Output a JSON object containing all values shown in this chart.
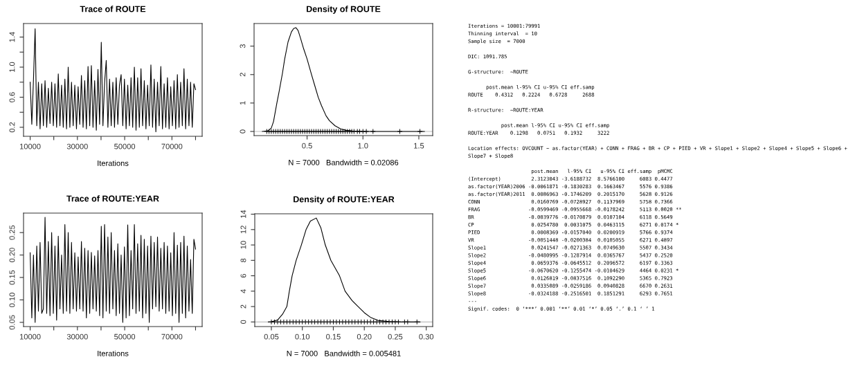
{
  "chart_data": [
    {
      "type": "line",
      "title": "Trace of ROUTE",
      "xlabel": "Iterations",
      "xlim": [
        7201,
        82791
      ],
      "ylim": [
        0.08,
        1.58
      ],
      "xticks": [
        10000,
        {
          "value": 20000,
          "label": null
        },
        30000,
        {
          "value": 40000,
          "label": null
        },
        50000,
        {
          "value": 60000,
          "label": null
        },
        70000,
        {
          "value": 80000,
          "label": null
        }
      ],
      "yticks": [
        0.2,
        {
          "value": 0.4,
          "label": null
        },
        0.6,
        {
          "value": 0.8,
          "label": null
        },
        {
          "value": 1.0,
          "label": "1.0"
        },
        {
          "value": 1.2,
          "label": null
        },
        1.4
      ],
      "x": [
        10001,
        10701,
        11401,
        12101,
        12801,
        13501,
        14201,
        14901,
        15601,
        16301,
        17001,
        17701,
        18401,
        19101,
        19801,
        20501,
        21201,
        21901,
        22601,
        23301,
        24001,
        24701,
        25401,
        26101,
        26801,
        27501,
        28201,
        28901,
        29601,
        30301,
        31001,
        31701,
        32401,
        33101,
        33801,
        34501,
        35201,
        35901,
        36601,
        37301,
        38001,
        38701,
        39401,
        40101,
        40801,
        41501,
        42201,
        42901,
        43601,
        44301,
        45001,
        45701,
        46401,
        47101,
        47801,
        48501,
        49201,
        49901,
        50601,
        51301,
        52001,
        52701,
        53401,
        54101,
        54801,
        55501,
        56201,
        56901,
        57601,
        58301,
        59001,
        59701,
        60401,
        61101,
        61801,
        62501,
        63201,
        63901,
        64601,
        65301,
        66001,
        66701,
        67401,
        68101,
        68801,
        69501,
        70201,
        70901,
        71601,
        72301,
        73001,
        73701,
        74401,
        75101,
        75801,
        76501,
        77201,
        77901,
        78601,
        79301,
        79991
      ],
      "series": [
        {
          "color": "#000000",
          "values": [
            0.8,
            0.24,
            0.83,
            1.51,
            0.22,
            0.8,
            0.18,
            0.78,
            0.22,
            0.82,
            0.2,
            0.72,
            0.25,
            0.8,
            0.22,
            0.78,
            0.2,
            0.91,
            0.22,
            0.76,
            0.2,
            0.84,
            0.18,
            1.0,
            0.2,
            0.8,
            0.22,
            0.76,
            0.18,
            0.74,
            0.24,
            0.89,
            0.2,
            0.82,
            0.18,
            1.01,
            0.22,
            1.02,
            0.2,
            0.82,
            0.16,
            0.97,
            0.24,
            1.33,
            0.22,
            0.8,
            1.09,
            0.2,
            0.84,
            0.22,
            0.8,
            0.2,
            0.86,
            0.24,
            0.76,
            0.9,
            0.22,
            0.84,
            0.18,
            0.76,
            0.22,
            0.86,
            0.2,
            1.0,
            0.16,
            0.86,
            0.2,
            0.98,
            0.22,
            0.82,
            0.18,
            0.76,
            0.22,
            1.03,
            0.2,
            0.84,
            0.14,
            0.8,
            0.22,
            1.01,
            0.18,
            0.78,
            0.2,
            0.86,
            0.18,
            0.74,
            0.22,
            0.82,
            0.18,
            0.9,
            0.2,
            0.8,
            0.22,
            0.98,
            0.18,
            0.84,
            0.22,
            0.8,
            0.2,
            0.78,
            0.7
          ]
        }
      ]
    },
    {
      "type": "line",
      "title": "Density of ROUTE",
      "xlabel": "N = 7000   Bandwidth = 0.02086",
      "xlim": [
        0.026,
        1.624
      ],
      "ylim": [
        -0.146,
        3.795
      ],
      "xticks": [
        0.5,
        {
          "value": 1.0,
          "label": "1.0"
        },
        1.5
      ],
      "yticks": [
        0,
        1,
        2,
        3
      ],
      "ref_lines": [
        {
          "axis": "y",
          "value": 0,
          "color": "#bebebe"
        }
      ],
      "series": [
        {
          "color": "#000000",
          "x": [
            0.1,
            0.15,
            0.18,
            0.2,
            0.23,
            0.25,
            0.28,
            0.3,
            0.33,
            0.36,
            0.38,
            0.4,
            0.42,
            0.44,
            0.47,
            0.5,
            0.54,
            0.57,
            0.6,
            0.63,
            0.67,
            0.7,
            0.75,
            0.8,
            0.85,
            0.9,
            1.0,
            1.55
          ],
          "values": [
            0,
            0.02,
            0.12,
            0.35,
            1.0,
            1.4,
            2.05,
            2.55,
            3.15,
            3.5,
            3.62,
            3.65,
            3.55,
            3.3,
            2.9,
            2.55,
            2.0,
            1.6,
            1.2,
            0.9,
            0.55,
            0.38,
            0.2,
            0.09,
            0.04,
            0.02,
            0,
            0
          ]
        },
        {
          "type": "scatter",
          "marker": "cross",
          "color": "#000000",
          "x": [
            0.14,
            0.16,
            0.18,
            0.2,
            0.22,
            0.24,
            0.26,
            0.28,
            0.3,
            0.32,
            0.34,
            0.36,
            0.38,
            0.4,
            0.42,
            0.44,
            0.46,
            0.48,
            0.5,
            0.52,
            0.54,
            0.56,
            0.58,
            0.6,
            0.62,
            0.64,
            0.66,
            0.68,
            0.7,
            0.72,
            0.74,
            0.76,
            0.78,
            0.8,
            0.82,
            0.84,
            0.86,
            0.88,
            0.9,
            0.92,
            0.95,
            0.97,
            1.0,
            1.03,
            1.09,
            1.33,
            1.51
          ],
          "values": [
            0,
            0,
            0,
            0,
            0,
            0,
            0,
            0,
            0,
            0,
            0,
            0,
            0,
            0,
            0,
            0,
            0,
            0,
            0,
            0,
            0,
            0,
            0,
            0,
            0,
            0,
            0,
            0,
            0,
            0,
            0,
            0,
            0,
            0,
            0,
            0,
            0,
            0,
            0,
            0,
            0,
            0,
            0,
            0,
            0,
            0,
            0
          ]
        }
      ]
    },
    {
      "type": "line",
      "title": "Trace of ROUTE:YEAR",
      "xlabel": "Iterations",
      "xlim": [
        7201,
        82791
      ],
      "ylim": [
        0.0406,
        0.2934
      ],
      "xticks": [
        10000,
        {
          "value": 20000,
          "label": null
        },
        30000,
        {
          "value": 40000,
          "label": null
        },
        50000,
        {
          "value": 60000,
          "label": null
        },
        70000,
        {
          "value": 80000,
          "label": null
        }
      ],
      "yticks": [
        0.05,
        {
          "value": 0.1,
          "label": "0.10"
        },
        0.15,
        {
          "value": 0.2,
          "label": "0.20"
        },
        0.25
      ],
      "x": [
        10001,
        10701,
        11401,
        12101,
        12801,
        13501,
        14201,
        14901,
        15601,
        16301,
        17001,
        17701,
        18401,
        19101,
        19801,
        20501,
        21201,
        21901,
        22601,
        23301,
        24001,
        24701,
        25401,
        26101,
        26801,
        27501,
        28201,
        28901,
        29601,
        30301,
        31001,
        31701,
        32401,
        33101,
        33801,
        34501,
        35201,
        35901,
        36601,
        37301,
        38001,
        38701,
        39401,
        40101,
        40801,
        41501,
        42201,
        42901,
        43601,
        44301,
        45001,
        45701,
        46401,
        47101,
        47801,
        48501,
        49201,
        49901,
        50601,
        51301,
        52001,
        52701,
        53401,
        54101,
        54801,
        55501,
        56201,
        56901,
        57601,
        58301,
        59001,
        59701,
        60401,
        61101,
        61801,
        62501,
        63201,
        63901,
        64601,
        65301,
        66001,
        66701,
        67401,
        68101,
        68801,
        69501,
        70201,
        70901,
        71601,
        72301,
        73001,
        73701,
        74401,
        75101,
        75801,
        76501,
        77201,
        77901,
        78601,
        79301,
        79991
      ],
      "series": [
        {
          "color": "#000000",
          "values": [
            0.205,
            0.06,
            0.2,
            0.05,
            0.22,
            0.075,
            0.228,
            0.07,
            0.08,
            0.284,
            0.07,
            0.23,
            0.065,
            0.25,
            0.07,
            0.22,
            0.055,
            0.242,
            0.08,
            0.2,
            0.07,
            0.268,
            0.075,
            0.25,
            0.07,
            0.228,
            0.08,
            0.205,
            0.075,
            0.196,
            0.08,
            0.23,
            0.075,
            0.215,
            0.06,
            0.21,
            0.07,
            0.206,
            0.08,
            0.198,
            0.075,
            0.21,
            0.065,
            0.264,
            0.06,
            0.268,
            0.075,
            0.24,
            0.07,
            0.25,
            0.08,
            0.21,
            0.065,
            0.225,
            0.07,
            0.2,
            0.05,
            0.218,
            0.06,
            0.267,
            0.065,
            0.21,
            0.08,
            0.268,
            0.07,
            0.225,
            0.075,
            0.244,
            0.06,
            0.235,
            0.07,
            0.22,
            0.05,
            0.242,
            0.08,
            0.228,
            0.085,
            0.24,
            0.075,
            0.215,
            0.08,
            0.228,
            0.07,
            0.22,
            0.075,
            0.205,
            0.065,
            0.25,
            0.07,
            0.222,
            0.05,
            0.228,
            0.07,
            0.242,
            0.06,
            0.22,
            0.075,
            0.19,
            0.07,
            0.235,
            0.213
          ]
        }
      ]
    },
    {
      "type": "line",
      "title": "Density of ROUTE:YEAR",
      "xlabel": "N = 7000   Bandwidth = 0.005481",
      "xlim": [
        0.0232,
        0.3104
      ],
      "ylim": [
        -0.6,
        14.05
      ],
      "xticks": [
        0.05,
        {
          "value": 0.1,
          "label": "0.10"
        },
        0.15,
        {
          "value": 0.2,
          "label": "0.20"
        },
        0.25,
        {
          "value": 0.3,
          "label": "0.30"
        }
      ],
      "yticks": [
        0,
        2,
        4,
        6,
        8,
        10,
        12,
        14
      ],
      "ref_lines": [
        {
          "axis": "y",
          "value": 0,
          "color": "#bebebe"
        }
      ],
      "series": [
        {
          "color": "#000000",
          "x": [
            0.045,
            0.05,
            0.06,
            0.068,
            0.075,
            0.079,
            0.0835,
            0.09,
            0.0984,
            0.106,
            0.113,
            0.1225,
            0.13,
            0.137,
            0.146,
            0.16,
            0.169,
            0.18,
            0.19,
            0.2,
            0.21,
            0.222,
            0.24,
            0.26,
            0.29
          ],
          "values": [
            0,
            0.02,
            0.25,
            1.0,
            2.0,
            4.0,
            6.0,
            8.0,
            10.0,
            12.0,
            13.1,
            13.5,
            12.2,
            10.0,
            8.0,
            6.0,
            4.0,
            2.8,
            2.0,
            1.2,
            0.6,
            0.2,
            0.05,
            0,
            0
          ]
        },
        {
          "type": "scatter",
          "marker": "cross",
          "color": "#000000",
          "x": [
            0.05,
            0.055,
            0.06,
            0.065,
            0.07,
            0.075,
            0.08,
            0.085,
            0.09,
            0.095,
            0.1,
            0.105,
            0.11,
            0.115,
            0.12,
            0.125,
            0.13,
            0.135,
            0.14,
            0.145,
            0.15,
            0.155,
            0.16,
            0.165,
            0.17,
            0.175,
            0.18,
            0.185,
            0.19,
            0.195,
            0.2,
            0.205,
            0.21,
            0.215,
            0.22,
            0.225,
            0.23,
            0.235,
            0.24,
            0.245,
            0.25,
            0.255,
            0.265,
            0.27,
            0.285
          ],
          "values": [
            0,
            0,
            0,
            0,
            0,
            0,
            0,
            0,
            0,
            0,
            0,
            0,
            0,
            0,
            0,
            0,
            0,
            0,
            0,
            0,
            0,
            0,
            0,
            0,
            0,
            0,
            0,
            0,
            0,
            0,
            0,
            0,
            0,
            0,
            0,
            0,
            0,
            0,
            0,
            0,
            0,
            0,
            0,
            0,
            0
          ]
        }
      ]
    },
    {
      "type": "other",
      "annotations": [
        "Iterations = 10001:79991\nThinning interval  = 10\nSample size  = 7000",
        "DIC: 1091.785",
        "G-structure:  ~ROUTE",
        "      post.mean l-95% CI u-95% CI eff.samp\nROUTE    0.4312   0.2224   0.6728     2688",
        "R-structure:  ~ROUTE:YEAR",
        "           post.mean l-95% CI u-95% CI eff.samp\nROUTE:YEAR    0.1298   0.0751   0.1932     3222",
        "Location effects: OVCOUNT ~ as.factor(YEAR) + CONN + FRAG + BR + CP + PIED + VR + Slope1 + Slope2 + Slope4 + Slope5 + Slope6 +\nSlope7 + Slope8",
        "                     post.mean   l-95% CI   u-95% CI eff.samp  pMCMC\n(Intercept)          2.3123043 -3.6188732  8.5766100     6083 0.4477\nas.factor(YEAR)2006 -0.0061871 -0.1830283  0.1663467     5576 0.9386\nas.factor(YEAR)2011  0.0086963 -0.1746209  0.2015170     5628 0.9126\nCONN                 0.0160769 -0.0728927  0.1137969     5758 0.7366\nFRAG                -0.0599469 -0.0955668 -0.0178242     5113 0.0020 **\nBR                  -0.0039776 -0.0170879  0.0107104     6118 0.5649\nCP                   0.0254780  0.0031075  0.0463115     6271 0.0174 *\nPIED                 0.0008369 -0.0157040  0.0200919     5766 0.9374\nVR                  -0.0051448 -0.0200384  0.0105055     6271 0.4897\nSlope1               0.0241547 -0.0271363  0.0749630     5507 0.3434\nSlope2              -0.0480995 -0.1287914  0.0365767     5437 0.2520\nSlope4               0.0659376 -0.0645512  0.2096572     6197 0.3363\nSlope5              -0.0670620 -0.1255474 -0.0104629     4464 0.0231 *\nSlope6               0.0126819 -0.0837516  0.1092290     5365 0.7923\nSlope7               0.0335089 -0.0259186  0.0940828     6670 0.2631\nSlope8              -0.0324188 -0.2516501  0.1851291     6293 0.7651\n---\nSignif. codes:  0 ‘***’ 0.001 ‘**’ 0.01 ‘*’ 0.05 ‘.’ 0.1 ‘ ’ 1"
      ]
    }
  ]
}
